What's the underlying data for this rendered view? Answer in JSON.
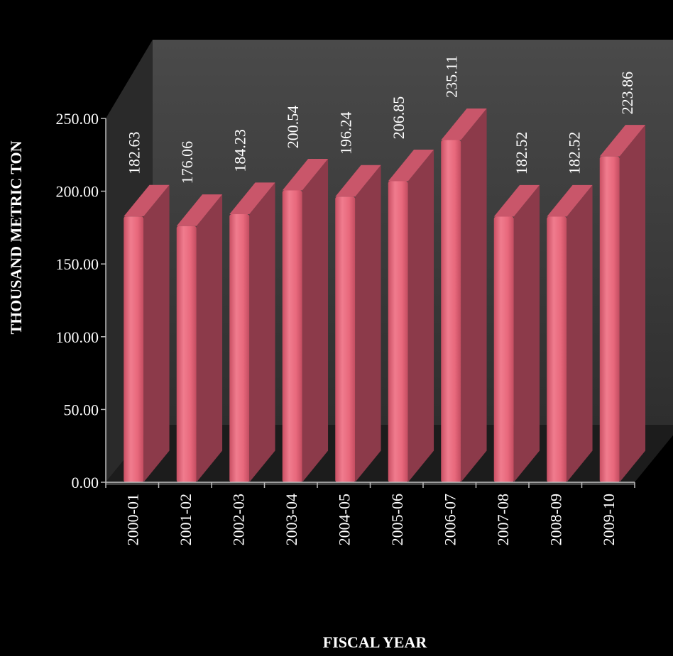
{
  "chart_data": {
    "type": "bar",
    "style": "3d-column",
    "xlabel": "FISCAL YEAR",
    "ylabel": "THOUSAND  METRIC TON",
    "ylim": [
      0,
      250
    ],
    "yticks": [
      0,
      50,
      100,
      150,
      200,
      250
    ],
    "ytick_labels": [
      "0.00",
      "50.00",
      "100.00",
      "150.00",
      "200.00",
      "250.00"
    ],
    "categories": [
      "2000-01",
      "2001-02",
      "2002-03",
      "2003-04",
      "2004-05",
      "2005-06",
      "2006-07",
      "2007-08",
      "2008-09",
      "2009-10"
    ],
    "values": [
      182.63,
      176.06,
      184.23,
      200.54,
      196.24,
      206.85,
      235.11,
      182.52,
      182.52,
      223.86
    ],
    "value_labels": [
      "182.63",
      "176.06",
      "184.23",
      "200.54",
      "196.24",
      "206.85",
      "235.11",
      "182.52",
      "182.52",
      "223.86"
    ],
    "grid": false,
    "legend": "none"
  },
  "colors": {
    "background": "#000000",
    "back_wall": "#3a3a3a",
    "side_wall": "#2a2a2a",
    "floor": "#1c1c1c",
    "bar_front": "#e8687c",
    "bar_side": "#8c3a4a",
    "bar_top": "#c9566a",
    "text": "#ffffff"
  }
}
